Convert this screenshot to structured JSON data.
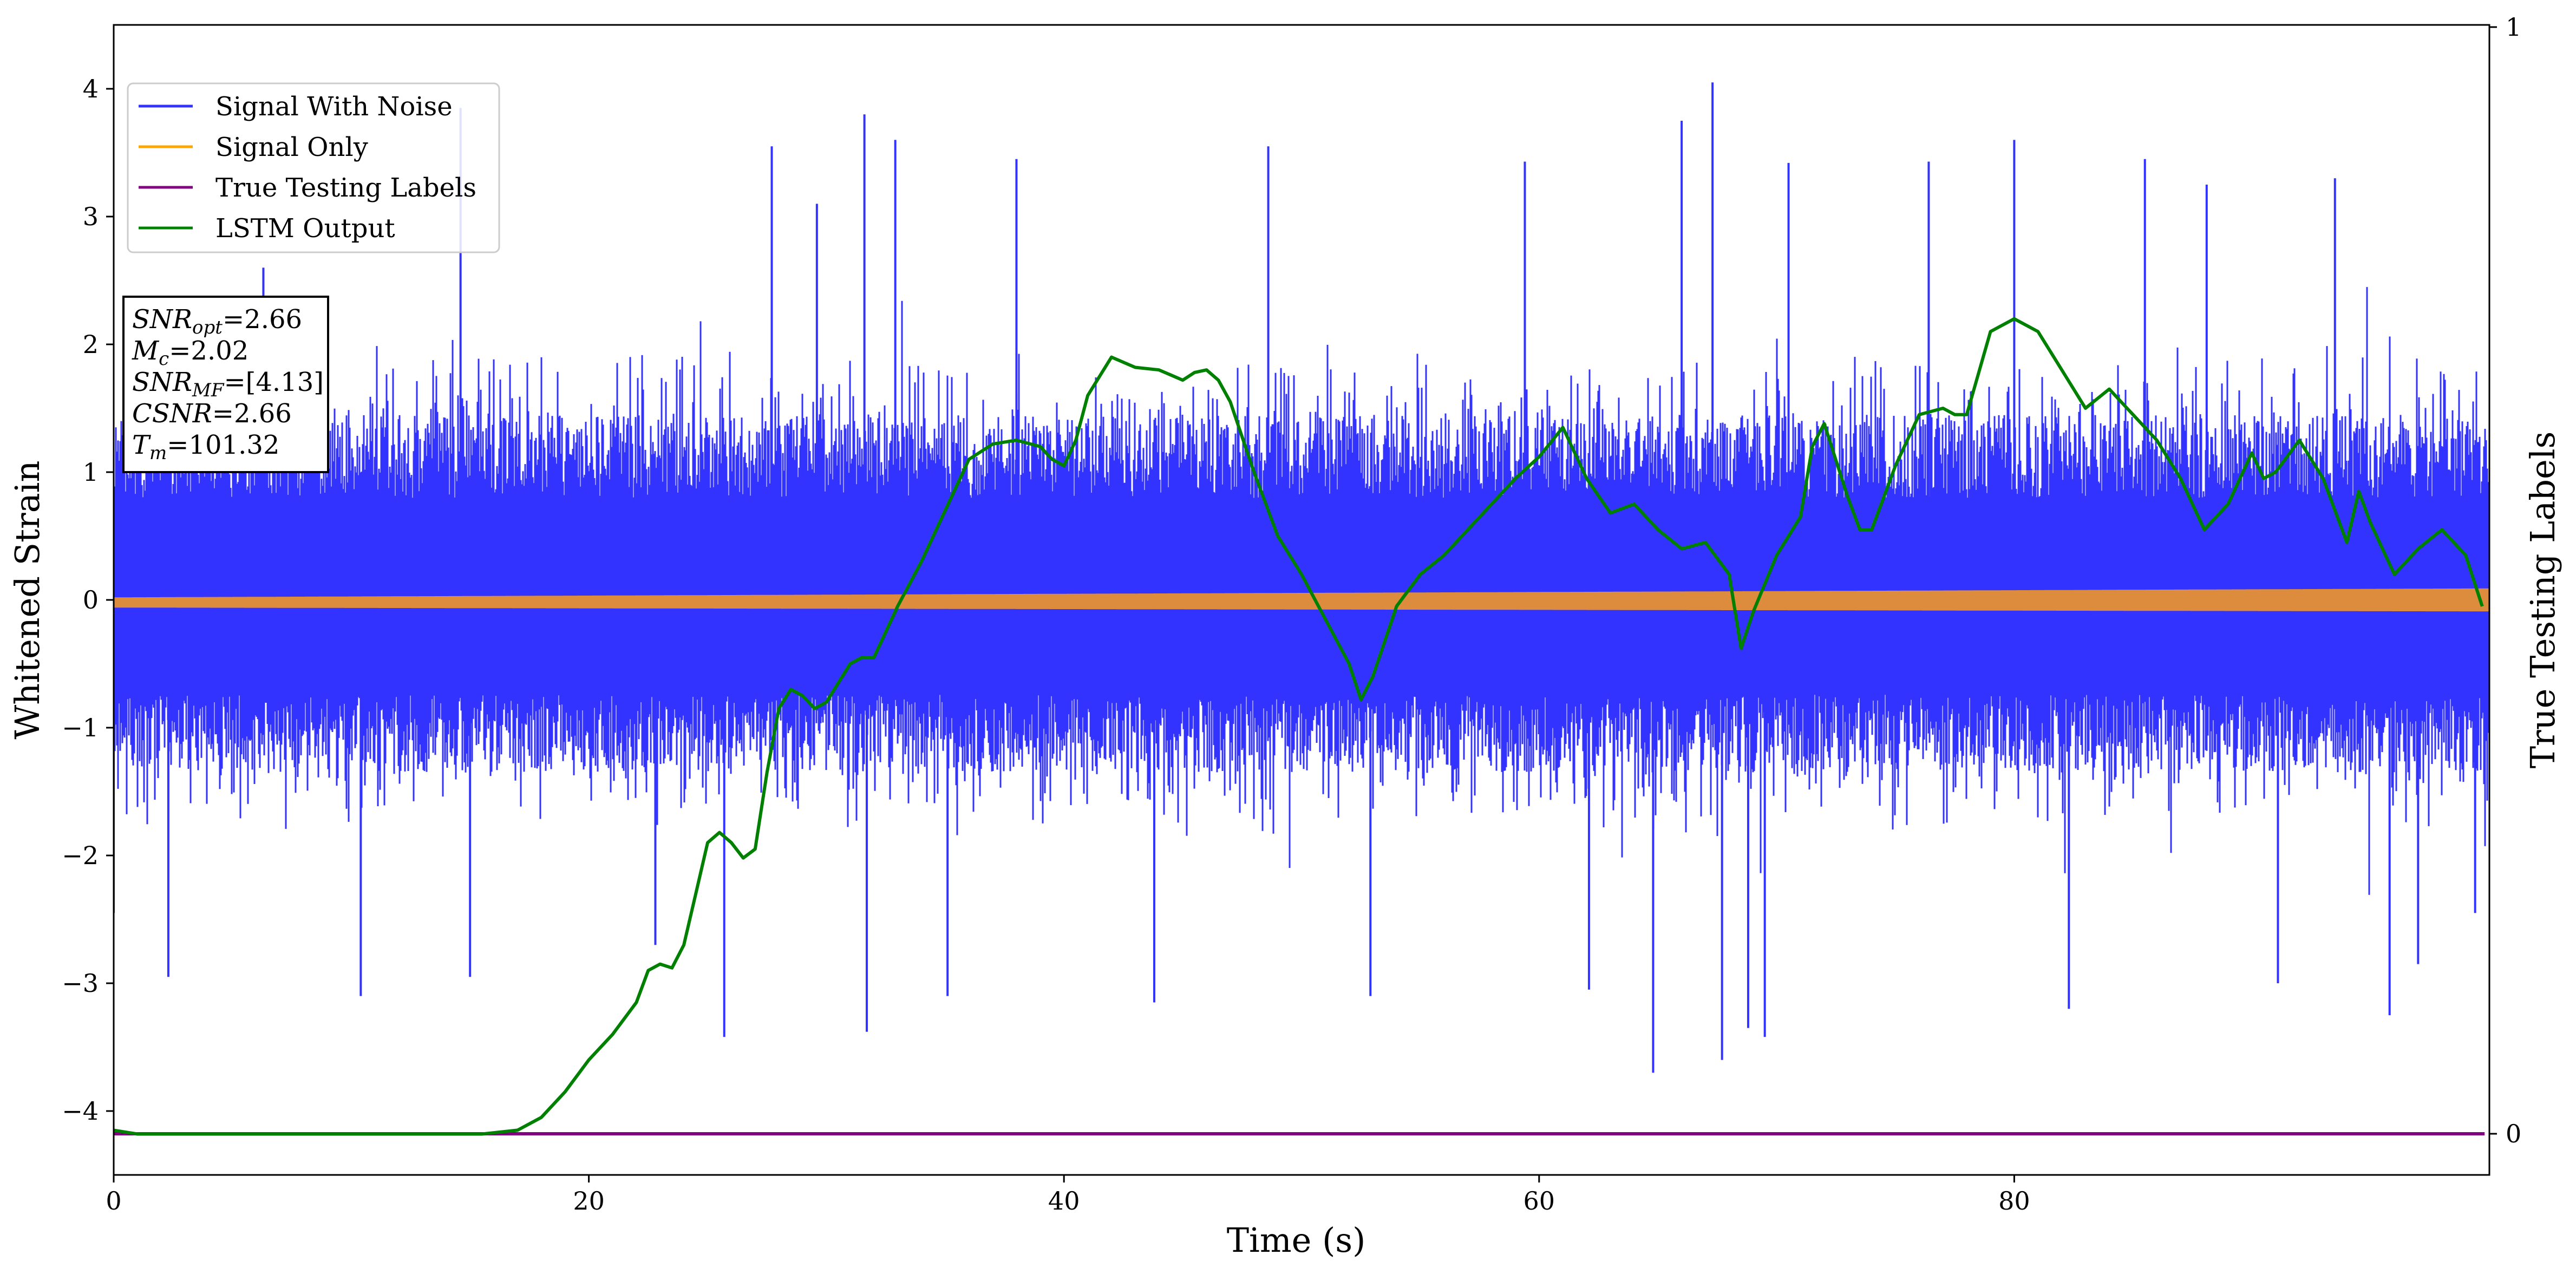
{
  "chart_data": {
    "type": "line",
    "xlabel": "Time (s)",
    "ylabel": "Whitened Strain",
    "y2label": "True Testing Labels",
    "xlim": [
      0,
      100
    ],
    "ylim": [
      -4.5,
      4.5
    ],
    "y2lim": [
      -0.03,
      1
    ],
    "xticks": [
      "0",
      "20",
      "40",
      "60",
      "80"
    ],
    "yticks": [
      "−4",
      "−3",
      "−2",
      "−1",
      "0",
      "1",
      "2",
      "3",
      "4"
    ],
    "y2ticks": [
      "0",
      "1"
    ],
    "grid": false,
    "legend_position": "top-left",
    "legend": [
      {
        "name": "Signal With Noise",
        "color": "#3333ff"
      },
      {
        "name": "Signal Only",
        "color": "#ffa500"
      },
      {
        "name": "True Testing Labels",
        "color": "#800080"
      },
      {
        "name": "LSTM Output",
        "color": "#008000"
      }
    ],
    "annotation": {
      "lines": [
        {
          "sym": "SNR",
          "sub": "opt",
          "val": "=2.66"
        },
        {
          "sym": "M",
          "sub": "c",
          "val": "=2.02"
        },
        {
          "sym": "SNR",
          "sub": "MF",
          "val": "=[4.13]"
        },
        {
          "sym": "CSNR",
          "sub": "",
          "val": "=2.66"
        },
        {
          "sym": "T",
          "sub": "m",
          "val": "=101.32"
        }
      ]
    },
    "series": [
      {
        "name": "Signal With Noise",
        "color": "#3333ff",
        "band": {
          "typical_low": -1.35,
          "typical_high": 1.45,
          "peak_min": -3.7,
          "peak_max": 4.05
        },
        "spikes": [
          [
            0,
            -2.45
          ],
          [
            2.3,
            -2.95
          ],
          [
            6.3,
            2.6
          ],
          [
            10.4,
            -3.1
          ],
          [
            14.6,
            3.85
          ],
          [
            15.0,
            -2.95
          ],
          [
            22.8,
            -2.7
          ],
          [
            25.7,
            -3.42
          ],
          [
            27.7,
            3.55
          ],
          [
            29.6,
            3.1
          ],
          [
            31.6,
            3.8
          ],
          [
            31.7,
            -3.38
          ],
          [
            32.9,
            3.6
          ],
          [
            35.1,
            -3.1
          ],
          [
            38.0,
            3.45
          ],
          [
            43.8,
            -3.15
          ],
          [
            48.6,
            3.55
          ],
          [
            52.9,
            -3.1
          ],
          [
            59.4,
            3.43
          ],
          [
            62.1,
            -3.05
          ],
          [
            64.8,
            -3.7
          ],
          [
            66.0,
            3.75
          ],
          [
            67.3,
            4.05
          ],
          [
            67.7,
            -3.6
          ],
          [
            68.8,
            -3.35
          ],
          [
            69.5,
            -3.42
          ],
          [
            70.5,
            3.42
          ],
          [
            76.4,
            3.43
          ],
          [
            80.0,
            3.6
          ],
          [
            82.3,
            -3.2
          ],
          [
            85.5,
            3.45
          ],
          [
            88.1,
            3.25
          ],
          [
            91.1,
            -3.0
          ],
          [
            93.5,
            3.3
          ],
          [
            95.8,
            -3.25
          ],
          [
            97.0,
            -2.85
          ],
          [
            99.4,
            -2.45
          ]
        ]
      },
      {
        "name": "Signal Only",
        "color": "#ffa500",
        "amplitude_start": 0.04,
        "amplitude_end": 0.09,
        "offset_start": -0.02,
        "offset_end": 0.0
      },
      {
        "name": "True Testing Labels",
        "color": "#800080",
        "axis": "right",
        "x": [
          0,
          99.8
        ],
        "y": [
          0,
          0
        ]
      },
      {
        "name": "LSTM Output",
        "color": "#008000",
        "x": [
          0,
          1,
          15.5,
          17,
          18,
          19,
          20,
          21,
          22,
          22.5,
          23,
          23.5,
          24,
          24.5,
          25,
          25.5,
          26,
          26.5,
          27,
          27.5,
          28,
          28.5,
          29,
          29.5,
          30,
          30.5,
          31,
          31.5,
          32,
          33,
          34,
          35,
          36,
          37,
          38,
          39,
          39.5,
          40,
          40.5,
          41,
          42,
          43,
          44,
          45,
          45.5,
          46,
          46.5,
          47,
          48,
          49,
          50,
          51,
          52,
          52.5,
          53,
          54,
          55,
          56,
          57,
          58,
          59,
          60,
          61,
          62,
          63,
          64,
          65,
          66,
          67,
          68,
          68.5,
          69,
          70,
          71,
          71.5,
          72,
          73,
          73.5,
          74,
          75,
          76,
          77,
          77.5,
          78,
          79,
          80,
          81,
          82,
          83,
          84,
          85,
          86,
          87,
          88,
          89,
          90,
          90.5,
          91,
          92,
          93,
          94,
          94.5,
          95,
          96,
          97,
          98,
          99,
          99.7
        ],
        "y": [
          -4.15,
          -4.18,
          -4.18,
          -4.15,
          -4.05,
          -3.85,
          -3.6,
          -3.4,
          -3.15,
          -2.9,
          -2.85,
          -2.88,
          -2.7,
          -2.3,
          -1.9,
          -1.82,
          -1.9,
          -2.02,
          -1.95,
          -1.35,
          -0.85,
          -0.7,
          -0.75,
          -0.85,
          -0.8,
          -0.65,
          -0.5,
          -0.45,
          -0.45,
          -0.05,
          0.3,
          0.7,
          1.1,
          1.22,
          1.25,
          1.2,
          1.1,
          1.05,
          1.25,
          1.6,
          1.9,
          1.82,
          1.8,
          1.72,
          1.78,
          1.8,
          1.72,
          1.55,
          1.0,
          0.5,
          0.2,
          -0.15,
          -0.5,
          -0.78,
          -0.6,
          -0.05,
          0.2,
          0.35,
          0.55,
          0.75,
          0.95,
          1.12,
          1.35,
          0.95,
          0.68,
          0.75,
          0.55,
          0.4,
          0.45,
          0.2,
          -0.38,
          -0.1,
          0.35,
          0.65,
          1.2,
          1.38,
          0.8,
          0.55,
          0.55,
          1.05,
          1.45,
          1.5,
          1.45,
          1.45,
          2.1,
          2.2,
          2.1,
          1.8,
          1.5,
          1.65,
          1.45,
          1.25,
          0.95,
          0.55,
          0.75,
          1.15,
          0.95,
          1.0,
          1.25,
          0.95,
          0.45,
          0.85,
          0.6,
          0.2,
          0.4,
          0.55,
          0.35,
          -0.05
        ]
      }
    ]
  }
}
